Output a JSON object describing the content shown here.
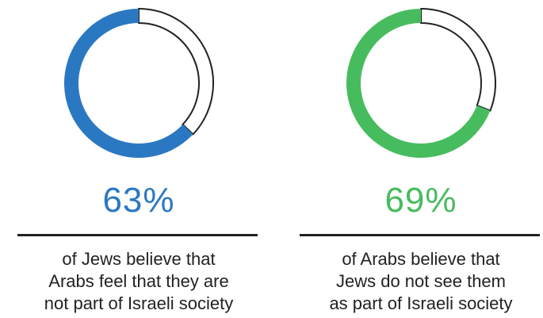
{
  "chart_data": [
    {
      "type": "pie",
      "value": 63,
      "label": "63%",
      "caption_lines": [
        "of Jews believe that",
        "Arabs feel that they are",
        "not part of Israeli society"
      ],
      "color": "#2b78c2",
      "remainder_color": "#ffffff",
      "outline_color": "#222222"
    },
    {
      "type": "pie",
      "value": 69,
      "label": "69%",
      "caption_lines": [
        "of Arabs believe that",
        "Jews do not see them",
        "as part of Israeli society"
      ],
      "color": "#47bc5e",
      "remainder_color": "#ffffff",
      "outline_color": "#222222"
    }
  ]
}
